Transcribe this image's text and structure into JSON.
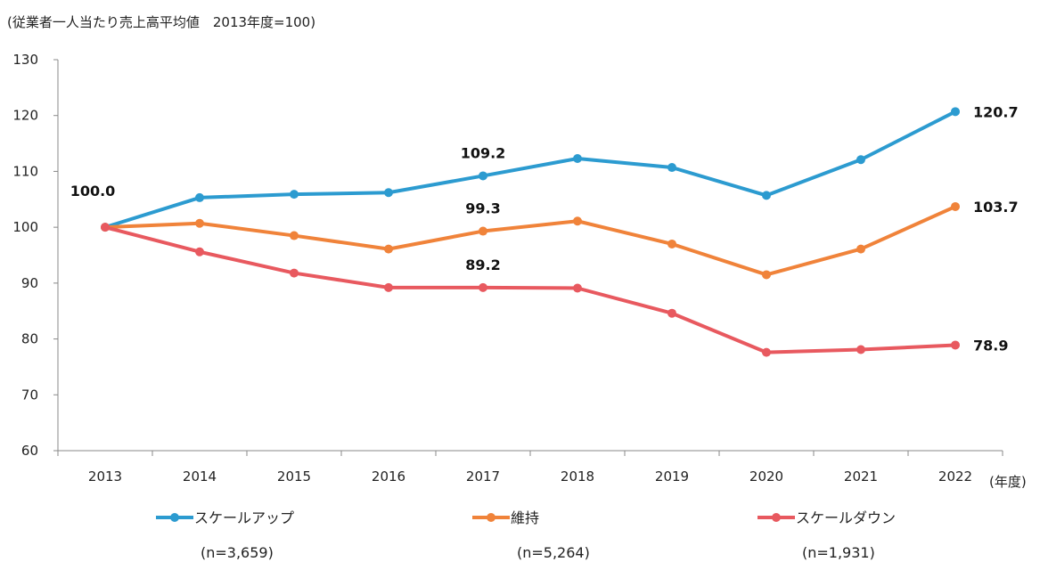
{
  "chart_data": {
    "type": "line",
    "title": "(従業者一人当たり売上高平均値　2013年度=100)",
    "xlabel": "(年度)",
    "ylabel": "",
    "categories": [
      "2013",
      "2014",
      "2015",
      "2016",
      "2017",
      "2018",
      "2019",
      "2020",
      "2021",
      "2022"
    ],
    "ylim": [
      60,
      130
    ],
    "yticks": [
      60,
      70,
      80,
      90,
      100,
      110,
      120,
      130
    ],
    "grid": false,
    "legend_position": "bottom",
    "series": [
      {
        "name": "スケールアップ",
        "count_label": "(n=3,659)",
        "color": "#2c9bd0",
        "values": [
          100.0,
          105.3,
          105.9,
          106.2,
          109.2,
          112.3,
          110.7,
          105.7,
          112.1,
          120.7
        ],
        "data_labels": {
          "4": "109.2",
          "9": "120.7"
        }
      },
      {
        "name": "維持",
        "count_label": "(n=5,264)",
        "color": "#f0833a",
        "values": [
          100.0,
          100.7,
          98.5,
          96.1,
          99.3,
          101.1,
          97.0,
          91.5,
          96.1,
          103.7
        ],
        "data_labels": {
          "4": "99.3",
          "9": "103.7"
        }
      },
      {
        "name": "スケールダウン",
        "count_label": "(n=1,931)",
        "color": "#e8595f",
        "values": [
          100.0,
          95.6,
          91.8,
          89.2,
          89.2,
          89.1,
          84.6,
          77.6,
          78.1,
          78.9
        ],
        "data_labels": {
          "4": "89.2",
          "9": "78.9"
        }
      }
    ],
    "annotations": [
      {
        "category": "2013",
        "value": 100.0,
        "label": "100.0"
      }
    ]
  }
}
